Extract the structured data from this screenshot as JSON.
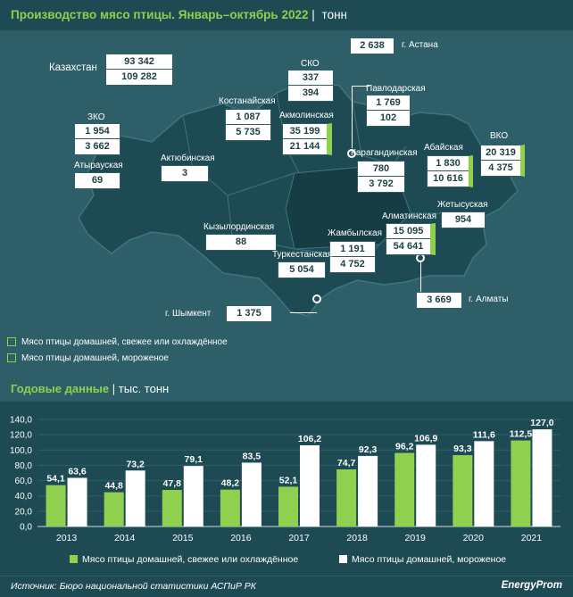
{
  "header": {
    "title": "Производство мясо птицы. Январь–октябрь 2022",
    "unit": "тонн"
  },
  "map": {
    "kazakhstan": {
      "label": "Казахстан",
      "v1": "93 342",
      "v2": "109 282"
    },
    "regions": [
      {
        "id": "astana",
        "label": "г. Астана",
        "v1": "2 638"
      },
      {
        "id": "sko",
        "label": "СКО",
        "v1": "337",
        "v2": "394"
      },
      {
        "id": "pavlodar",
        "label": "Павлодарская",
        "v1": "1 769",
        "v2": "102"
      },
      {
        "id": "kostanay",
        "label": "Костанайская",
        "v1": "1 087",
        "v2": "5 735"
      },
      {
        "id": "akmola",
        "label": "Акмолинская",
        "v1": "35 199",
        "v2": "21 144"
      },
      {
        "id": "zko",
        "label": "ЗКО",
        "v1": "1 954",
        "v2": "3 662"
      },
      {
        "id": "atyrau",
        "label": "Атырауская",
        "v1": "69"
      },
      {
        "id": "aktobe",
        "label": "Актюбинская",
        "v1": "3"
      },
      {
        "id": "karaganda",
        "label": "Карагандинская",
        "v1": "780",
        "v2": "3 792"
      },
      {
        "id": "abay",
        "label": "Абайская",
        "v1": "1 830",
        "v2": "10 616"
      },
      {
        "id": "vko",
        "label": "ВКО",
        "v1": "20 319",
        "v2": "4 375"
      },
      {
        "id": "zhetysu",
        "label": "Жетысуская",
        "v1": "954"
      },
      {
        "id": "almaty_reg",
        "label": "Алматинская",
        "v1": "15 095",
        "v2": "54 641"
      },
      {
        "id": "kyzylorda",
        "label": "Кызылординская",
        "v1": "88"
      },
      {
        "id": "zhambyl",
        "label": "Жамбылская",
        "v1": "1 191",
        "v2": "4 752"
      },
      {
        "id": "turkestan",
        "label": "Туркестанская",
        "v1": "5 054"
      },
      {
        "id": "almaty",
        "label": "г. Алматы",
        "v1": "3 669"
      },
      {
        "id": "shymkent",
        "label": "г. Шымкент",
        "v1": "1 375"
      }
    ],
    "legend": [
      "Мясо птицы домашней, свежее или охлаждённое",
      "Мясо птицы домашней, мороженое"
    ]
  },
  "section2": {
    "title": "Годовые данные",
    "unit": "тыс. тонн"
  },
  "chart_data": {
    "type": "bar",
    "categories": [
      "2013",
      "2014",
      "2015",
      "2016",
      "2017",
      "2018",
      "2019",
      "2020",
      "2021"
    ],
    "series": [
      {
        "name": "Мясо птицы домашней, свежее или охлаждённое",
        "values": [
          54.1,
          44.8,
          47.8,
          48.2,
          52.1,
          74.7,
          96.2,
          93.3,
          112.5
        ],
        "labels": [
          "54,1",
          "44,8",
          "47,8",
          "48,2",
          "52,1",
          "74,7",
          "96,2",
          "93,3",
          "112,5"
        ]
      },
      {
        "name": "Мясо птицы домашней, мороженое",
        "values": [
          63.6,
          73.2,
          79.1,
          83.5,
          106.2,
          92.3,
          106.9,
          111.6,
          127.0
        ],
        "labels": [
          "63,6",
          "73,2",
          "79,1",
          "83,5",
          "106,2",
          "92,3",
          "106,9",
          "111,6",
          "127,0"
        ]
      }
    ],
    "yticks": [
      "0,0",
      "20,0",
      "40,0",
      "60,0",
      "80,0",
      "100,0",
      "120,0",
      "140,0"
    ],
    "ylim": [
      0,
      140
    ],
    "colors": {
      "fresh": "#8fd14f",
      "frozen": "#ffffff"
    },
    "legend": "bottom"
  },
  "footer": {
    "source": "Источник: Бюро национальной статистики АСПиР РК",
    "brand": "EnergyProm"
  }
}
